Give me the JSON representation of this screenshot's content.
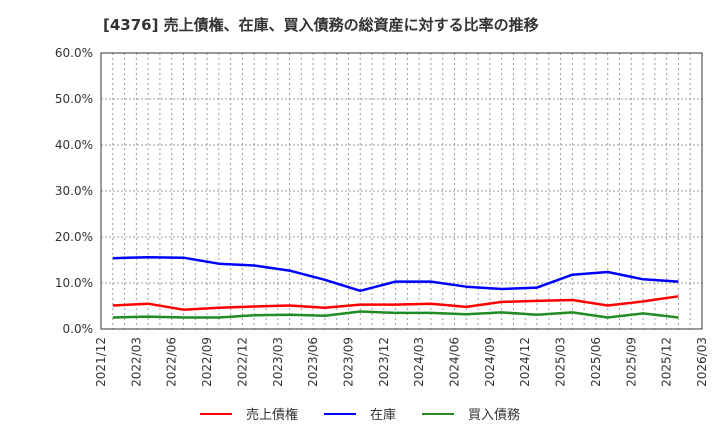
{
  "title": "[4376]  売上債権、在庫、買入債務の総資産に対する比率の推移",
  "chart_data": {
    "type": "line",
    "title": "[4376]  売上債権、在庫、買入債務の総資産に対する比率の推移",
    "xlabel": "",
    "ylabel": "",
    "ylim": [
      0,
      60
    ],
    "y_ticks": [
      "0.0%",
      "10.0%",
      "20.0%",
      "30.0%",
      "40.0%",
      "50.0%",
      "60.0%"
    ],
    "x_ticks": [
      "2021/12",
      "2022/03",
      "2022/06",
      "2022/09",
      "2022/12",
      "2023/03",
      "2023/06",
      "2023/09",
      "2023/12",
      "2024/03",
      "2024/06",
      "2024/09",
      "2024/12",
      "2025/03",
      "2025/06",
      "2025/09",
      "2025/12",
      "2026/03"
    ],
    "grid": true,
    "legend_position": "bottom",
    "x_month_offsets": [
      1,
      4,
      7,
      10,
      13,
      16,
      19,
      22,
      25,
      28,
      31,
      34,
      37,
      40,
      43,
      46,
      49
    ],
    "series": [
      {
        "name": "売上債権",
        "color": "#ff0000",
        "values": [
          5.1,
          5.5,
          4.2,
          4.6,
          4.9,
          5.1,
          4.6,
          5.3,
          5.3,
          5.5,
          4.8,
          5.9,
          6.1,
          6.3,
          5.1,
          6.0,
          7.1
        ]
      },
      {
        "name": "在庫",
        "color": "#0000ff",
        "values": [
          15.4,
          15.6,
          15.5,
          14.2,
          13.8,
          12.7,
          10.7,
          8.3,
          10.3,
          10.3,
          9.2,
          8.7,
          9.0,
          11.8,
          12.4,
          10.8,
          10.3
        ]
      },
      {
        "name": "買入債務",
        "color": "#228b22",
        "values": [
          2.5,
          2.7,
          2.5,
          2.5,
          3.0,
          3.1,
          2.9,
          3.8,
          3.5,
          3.5,
          3.2,
          3.6,
          3.1,
          3.6,
          2.5,
          3.4,
          2.5
        ]
      }
    ]
  },
  "legend": [
    {
      "label": "売上債権",
      "color": "#ff0000"
    },
    {
      "label": "在庫",
      "color": "#0000ff"
    },
    {
      "label": "買入債務",
      "color": "#228b22"
    }
  ]
}
